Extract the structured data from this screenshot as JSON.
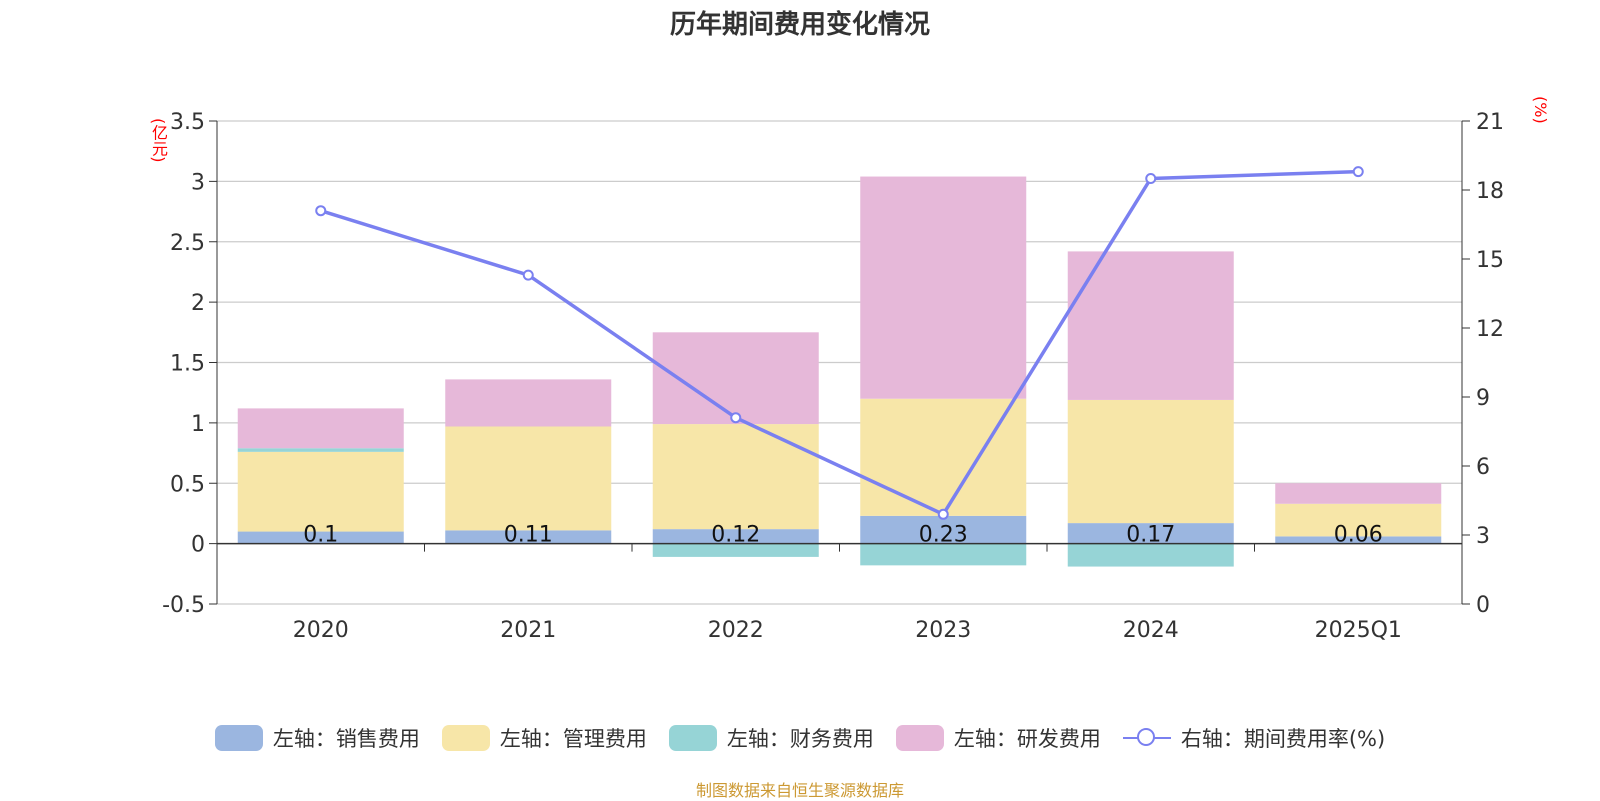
{
  "chart_data": {
    "type": "bar",
    "stacked": true,
    "title": "历年期间费用变化情况",
    "categories": [
      "2020",
      "2021",
      "2022",
      "2023",
      "2024",
      "2025Q1"
    ],
    "left_axis": {
      "unit": "(亿元)",
      "ylim": [
        -0.5,
        3.5
      ],
      "ticks": [
        "3.5",
        "3",
        "2.5",
        "2",
        "1.5",
        "1",
        "0.5",
        "0",
        "-0.5"
      ]
    },
    "right_axis": {
      "unit": "(%)",
      "ylim": [
        0,
        21
      ],
      "ticks": [
        "21",
        "18",
        "15",
        "12",
        "9",
        "6",
        "3",
        "0"
      ]
    },
    "series": [
      {
        "name": "左轴：销售费用",
        "color": "#9bb6e0",
        "values": [
          0.1,
          0.11,
          0.12,
          0.23,
          0.17,
          0.06
        ],
        "labels": [
          "0.1",
          "0.11",
          "0.12",
          "0.23",
          "0.17",
          "0.06"
        ]
      },
      {
        "name": "左轴：管理费用",
        "color": "#f7e6a8",
        "values": [
          0.66,
          0.86,
          0.87,
          0.97,
          1.02,
          0.27
        ]
      },
      {
        "name": "左轴：财务费用",
        "color": "#96d4d6",
        "values": [
          0.03,
          0.0,
          -0.11,
          -0.18,
          -0.19,
          0.0
        ]
      },
      {
        "name": "左轴：研发费用",
        "color": "#e6b8d9",
        "values": [
          0.33,
          0.39,
          0.76,
          1.84,
          1.23,
          0.17
        ]
      }
    ],
    "line": {
      "name": "右轴：期间费用率(%)",
      "color": "#7a80f0",
      "values": [
        17.1,
        14.3,
        8.1,
        3.9,
        18.5,
        18.8
      ]
    },
    "legend_position": "bottom",
    "grid": true
  },
  "source_note": "制图数据来自恒生聚源数据库"
}
